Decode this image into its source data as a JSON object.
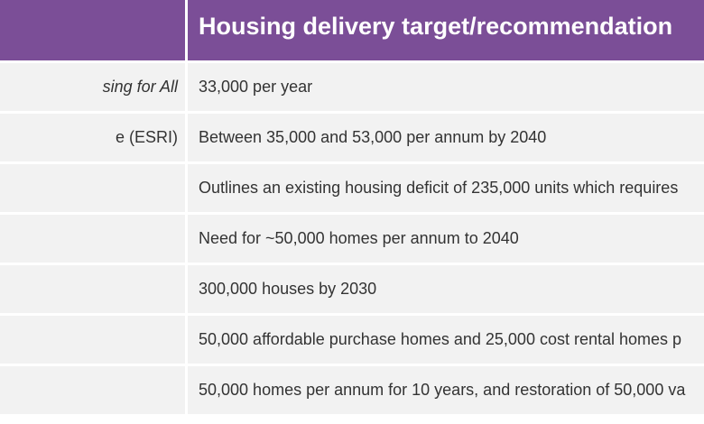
{
  "table": {
    "header": {
      "source_col": "",
      "target_col": "Housing delivery target/recommendation"
    },
    "rows": [
      {
        "source": "sing for All",
        "target": "33,000 per year",
        "italic": true
      },
      {
        "source": "e (ESRI)",
        "target": "Between 35,000 and 53,000 per annum by 2040",
        "italic": false
      },
      {
        "source": "",
        "target": "Outlines an existing housing deficit of 235,000 units which requires",
        "italic": false
      },
      {
        "source": "",
        "target": "Need for ~50,000 homes per annum to 2040",
        "italic": false
      },
      {
        "source": "",
        "target": "300,000 houses by 2030",
        "italic": false
      },
      {
        "source": "",
        "target": "50,000 affordable purchase homes and 25,000 cost rental homes p",
        "italic": false
      },
      {
        "source": "",
        "target": "50,000 homes per annum for 10 years, and restoration of 50,000 va",
        "italic": false
      }
    ]
  }
}
